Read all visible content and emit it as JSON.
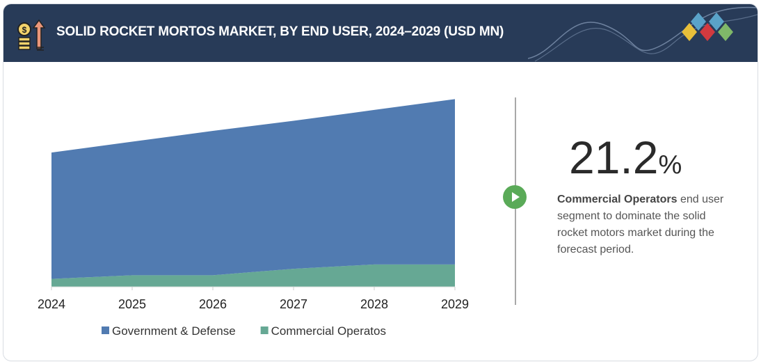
{
  "header": {
    "title": "SOLID ROCKET MORTOS MARKET, BY END USER, 2024–2029 (USD MN)",
    "icon": "money-growth-icon",
    "logo": "diamond-logo-icon"
  },
  "chart_data": {
    "type": "area",
    "stacked": true,
    "title": "",
    "xlabel": "",
    "ylabel": "",
    "categories": [
      "2024",
      "2025",
      "2026",
      "2027",
      "2028",
      "2029"
    ],
    "series": [
      {
        "name": "Commercial Operatos",
        "color": "#66a894",
        "values": [
          11,
          16,
          16,
          25,
          31,
          31
        ]
      },
      {
        "name": "Government & Defense",
        "color": "#517bb1",
        "values": [
          175,
          185,
          200,
          205,
          214,
          229
        ]
      }
    ],
    "ylim": [
      0,
      270
    ],
    "grid": false,
    "legend": "bottom",
    "legend_order": [
      "Government & Defense",
      "Commercial Operatos"
    ]
  },
  "callout": {
    "value": "21.2",
    "unit": "%",
    "highlight": "Commercial Operators",
    "text": " end user segment to dominate the solid rocket motors market during the forecast period.",
    "icon": "play-icon"
  }
}
